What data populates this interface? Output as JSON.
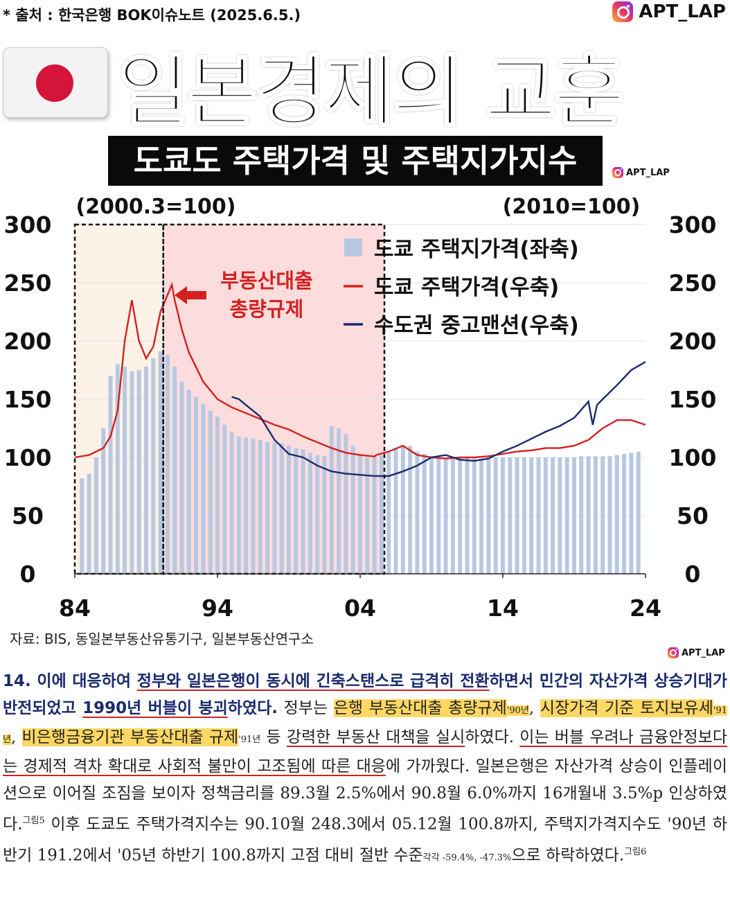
{
  "header": {
    "source_note": "* 출처 : 한국은행 BOK이슈노트 (2025.6.5.)",
    "instagram_handle": "APT_LAP",
    "title": "일본경제의 교훈",
    "subtitle": "도쿄도 주택가격 및 주택지가지수"
  },
  "colors": {
    "land_bar": "#b8c8e2",
    "tokyo_house": "#d42020",
    "metro_condo": "#1a2a6c",
    "zone_pre": "#fdf2e8",
    "zone_regulation": "#fcdcdc",
    "annotation": "#d42020",
    "highlight": "#ffd864"
  },
  "chart_data": {
    "type": "bar+line",
    "left_axis_label": "(2000.3=100)",
    "right_axis_label": "(2010=100)",
    "yticks": [
      "0",
      "50",
      "100",
      "150",
      "200",
      "250",
      "300"
    ],
    "xticks": [
      "84",
      "94",
      "04",
      "14",
      "24"
    ],
    "ylim": [
      0,
      300
    ],
    "xlim": [
      1984,
      2024
    ],
    "annotation": [
      "부동산대출",
      "총량규제"
    ],
    "legend": [
      {
        "label": "도쿄 주택지가격(좌축)",
        "kind": "bar",
        "color": "#b8c8e2"
      },
      {
        "label": "도쿄 주택가격(우축)",
        "kind": "line",
        "color": "#d42020"
      },
      {
        "label": "수도권 중고맨션(우축)",
        "kind": "line",
        "color": "#1a2a6c"
      }
    ],
    "land_price_bars": {
      "x": [
        1984.5,
        1985,
        1985.5,
        1986,
        1986.5,
        1987,
        1987.5,
        1988,
        1988.5,
        1989,
        1989.5,
        1990,
        1990.5,
        1991,
        1991.5,
        1992,
        1992.5,
        1993,
        1993.5,
        1994,
        1994.5,
        1995,
        1995.5,
        1996,
        1996.5,
        1997,
        1997.5,
        1998,
        1998.5,
        1999,
        1999.5,
        2000,
        2000.5,
        2001,
        2001.5,
        2002,
        2002.5,
        2003,
        2003.5,
        2004,
        2004.5,
        2005,
        2005.5,
        2006,
        2006.5,
        2007,
        2007.5,
        2008,
        2008.5,
        2009,
        2009.5,
        2010,
        2010.5,
        2011,
        2011.5,
        2012,
        2012.5,
        2013,
        2013.5,
        2014,
        2014.5,
        2015,
        2015.5,
        2016,
        2016.5,
        2017,
        2017.5,
        2018,
        2018.5,
        2019,
        2019.5,
        2020,
        2020.5,
        2021,
        2021.5,
        2022,
        2022.5,
        2023,
        2023.5
      ],
      "values": [
        82,
        86,
        100,
        125,
        170,
        180,
        178,
        174,
        175,
        178,
        185,
        191,
        188,
        178,
        165,
        158,
        152,
        146,
        140,
        135,
        128,
        122,
        118,
        117,
        116,
        115,
        113,
        113,
        112,
        110,
        108,
        107,
        104,
        102,
        101,
        127,
        125,
        120,
        110,
        103,
        100,
        101,
        102,
        105,
        108,
        110,
        110,
        105,
        103,
        101,
        100,
        100,
        100,
        100,
        100,
        99,
        99,
        100,
        100,
        100,
        100,
        100,
        100,
        100,
        100,
        100,
        100,
        100,
        100,
        100,
        101,
        101,
        101,
        101,
        101,
        102,
        103,
        104,
        105
      ]
    },
    "series": [
      {
        "name": "도쿄 주택가격(우축)",
        "x": [
          1984,
          1985,
          1986,
          1986.5,
          1987,
          1987.5,
          1988,
          1988.5,
          1989,
          1989.5,
          1990,
          1990.8,
          1991,
          1991.5,
          1992,
          1993,
          1994,
          1995,
          1996,
          1997,
          1998,
          1999,
          2000,
          2001,
          2002,
          2003,
          2004,
          2005,
          2005.12,
          2006,
          2007,
          2008,
          2009,
          2010,
          2011,
          2012,
          2013,
          2014,
          2015,
          2016,
          2017,
          2018,
          2019,
          2020,
          2021,
          2022,
          2023,
          2024
        ],
        "values": [
          100,
          102,
          108,
          118,
          140,
          200,
          235,
          200,
          185,
          195,
          225,
          248.3,
          235,
          210,
          190,
          165,
          150,
          143,
          138,
          133,
          128,
          124,
          118,
          113,
          108,
          104,
          102,
          100.8,
          102,
          105,
          110,
          102,
          100,
          99,
          100,
          100,
          101,
          103,
          105,
          106,
          108,
          108,
          110,
          115,
          125,
          132,
          132,
          128
        ]
      },
      {
        "name": "수도권 중고맨션(우축)",
        "x": [
          1995,
          1995.5,
          1996,
          1997,
          1998,
          1999,
          2000,
          2001,
          2002,
          2003,
          2004,
          2005,
          2006,
          2007,
          2008,
          2009,
          2010,
          2011,
          2012,
          2013,
          2014,
          2015,
          2016,
          2017,
          2018,
          2019,
          2020,
          2020.3,
          2020.6,
          2021,
          2022,
          2023,
          2024
        ],
        "values": [
          152,
          150,
          145,
          135,
          115,
          103,
          100,
          93,
          88,
          86,
          85,
          84,
          84,
          88,
          93,
          100,
          102,
          98,
          97,
          99,
          105,
          110,
          116,
          122,
          127,
          134,
          148,
          128,
          145,
          150,
          162,
          175,
          182
        ]
      }
    ]
  },
  "footer": {
    "credit": "자료: BIS, 동일본부동산유통기구, 일본부동산연구소",
    "instagram_handle": "APT_LAP"
  },
  "body": {
    "p1_lead": "14. 이에 대응하여 ",
    "p1_ul1": "정부와 일본은행이 동시에 긴축스탠스로 급격히 전환",
    "p1_mid": "하면서 민간의 자산가격 상승기대가 반전되었고 ",
    "p1_ul2": "1990년 버블이 붕괴",
    "p1_end": "하였다.",
    "p2_a": " 정부는 ",
    "p2_hl1": "은행 부동산대출 총량규제",
    "p2_sub1": "'90년",
    "p2_sep1": ", ",
    "p2_hl2": "시장가격 기준 토지보유세",
    "p2_sub2": "'91년",
    "p2_sep2": ", ",
    "p2_hl3": "비은행금융기관 부동산대출 규제",
    "p2_sub3": "'91년",
    "p2_b": " 등 ",
    "p2_ul1": "강력한 부동산 대책을 실시",
    "p2_c": "하였다. ",
    "p2_ul2": "이는 버블 우려나 금융안정보다는 경제적 격차 확대로 사회적 불만이 고조됨에 따른 대응",
    "p2_d": "에 가까웠다. 일본은행은 자산가격 상승이 인플레이션으로 이어질 조짐을 보이자 정책금리를 89.3월 2.5%에서 90.8월 6.0%까지 16개월내 3.5%p 인상하였다.",
    "ref1": "그림5",
    "p2_e": " 이후 도쿄도 주택가격지수는 90.10월 248.3에서 05.12월 100.8까지, 주택지가격지수도 '90년 하반기 191.2에서 '05년 하반기 100.8까지 고점 대비 절반 수준",
    "sub4": "각각 -59.4%, -47.3%",
    "p2_f": "으로 하락하였다.",
    "ref2": "그림6"
  }
}
